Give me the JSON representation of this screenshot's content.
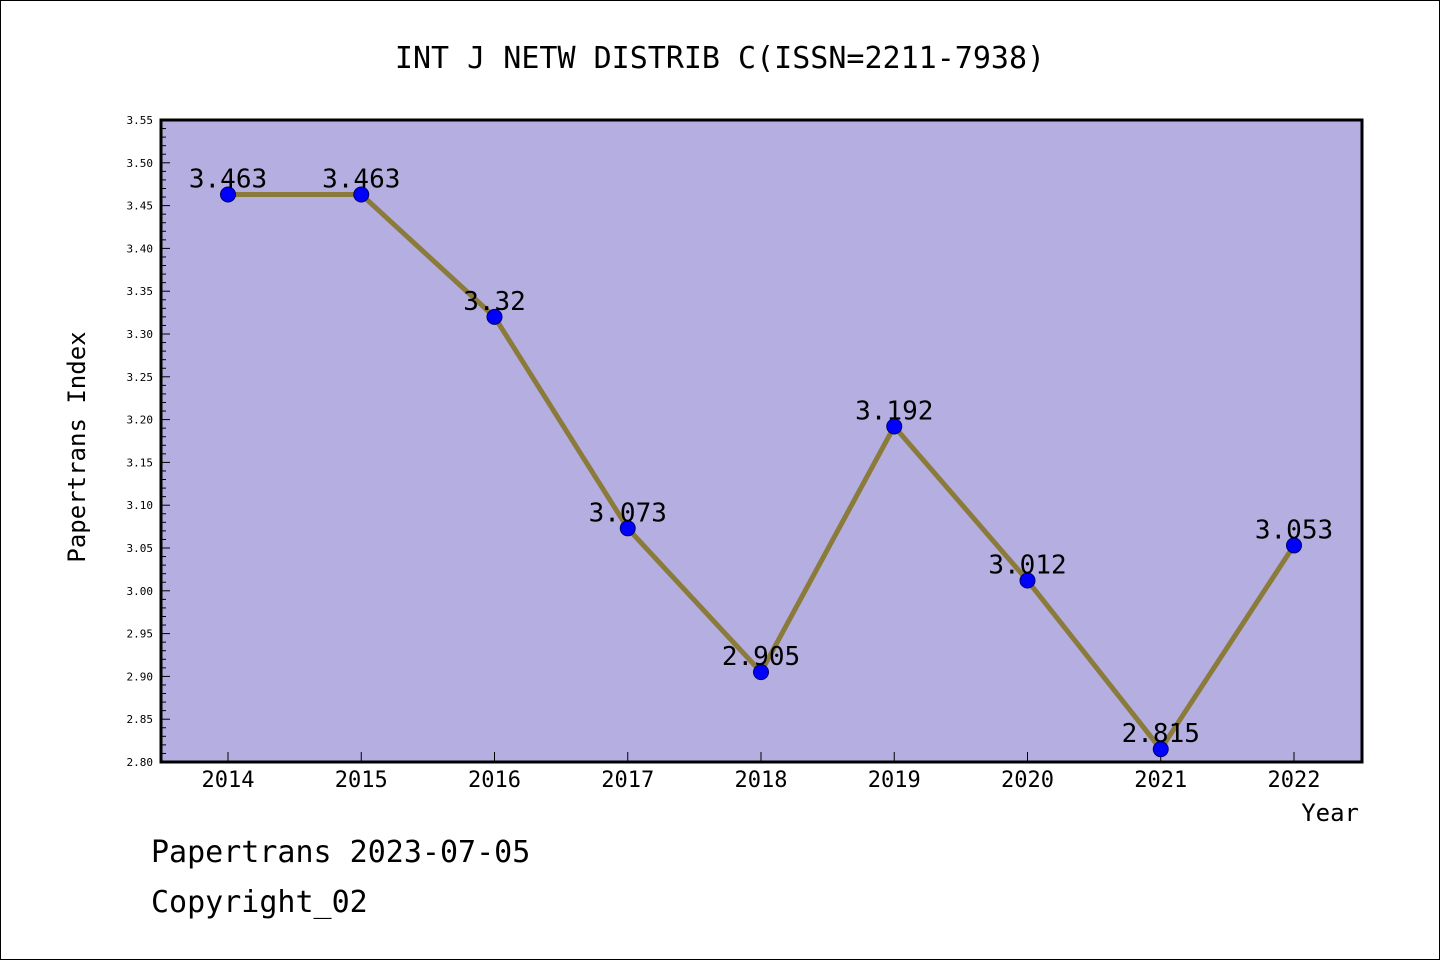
{
  "chart_data": {
    "type": "line",
    "title": "INT J NETW DISTRIB C(ISSN=2211-7938)",
    "xlabel": "Year",
    "ylabel": "Papertrans Index",
    "categories": [
      "2014",
      "2015",
      "2016",
      "2017",
      "2018",
      "2019",
      "2020",
      "2021",
      "2022"
    ],
    "values": [
      3.463,
      3.463,
      3.32,
      3.073,
      2.905,
      3.192,
      3.012,
      2.815,
      3.053
    ],
    "data_labels": [
      "3.463",
      "3.463",
      "3.32",
      "3.073",
      "2.905",
      "3.192",
      "3.012",
      "2.815",
      "3.053"
    ],
    "ylim": [
      2.8,
      3.55
    ],
    "y_ticks": [
      "2.80",
      "2.85",
      "2.90",
      "2.95",
      "3.00",
      "3.05",
      "3.10",
      "3.15",
      "3.20",
      "3.25",
      "3.30",
      "3.35",
      "3.40",
      "3.45",
      "3.50",
      "3.55"
    ],
    "grid": false,
    "colors": {
      "plot_background": "#b5aee1",
      "line": "#8b7b3a",
      "marker": "#0000ff",
      "axis": "#000000"
    }
  },
  "footer": {
    "line1": "Papertrans 2023-07-05",
    "line2": "Copyright_02"
  }
}
